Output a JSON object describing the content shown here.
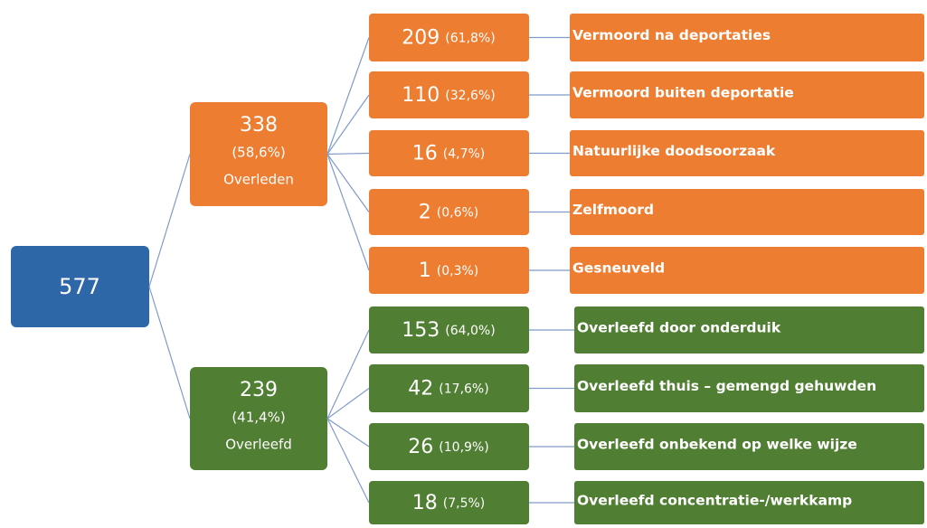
{
  "root": {
    "label": "577"
  },
  "groups": [
    {
      "value": "338",
      "percent": "(58,6%)",
      "label": "Overleden",
      "children": [
        {
          "value": "209",
          "percent": "(61,8%)",
          "label": "Vermoord na deportaties"
        },
        {
          "value": "110",
          "percent": "(32,6%)",
          "label": "Vermoord buiten deportatie"
        },
        {
          "value": "16",
          "percent": "(4,7%)",
          "label": "Natuurlijke doodsoorzaak"
        },
        {
          "value": "2",
          "percent": "(0,6%)",
          "label": "Zelfmoord"
        },
        {
          "value": "1",
          "percent": "(0,3%)",
          "label": "Gesneuveld"
        }
      ]
    },
    {
      "value": "239",
      "percent": "(41,4%)",
      "label": "Overleefd",
      "children": [
        {
          "value": "153",
          "percent": "(64,0%)",
          "label": "Overleefd door onderduik"
        },
        {
          "value": "42",
          "percent": "(17,6%)",
          "label": "Overleefd thuis – gemengd gehuwden"
        },
        {
          "value": "26",
          "percent": "(10,9%)",
          "label": "Overleefd onbekend op welke wijze"
        },
        {
          "value": "18",
          "percent": "(7,5%)",
          "label": "Overleefd concentratie-/werkkamp"
        }
      ]
    }
  ]
}
